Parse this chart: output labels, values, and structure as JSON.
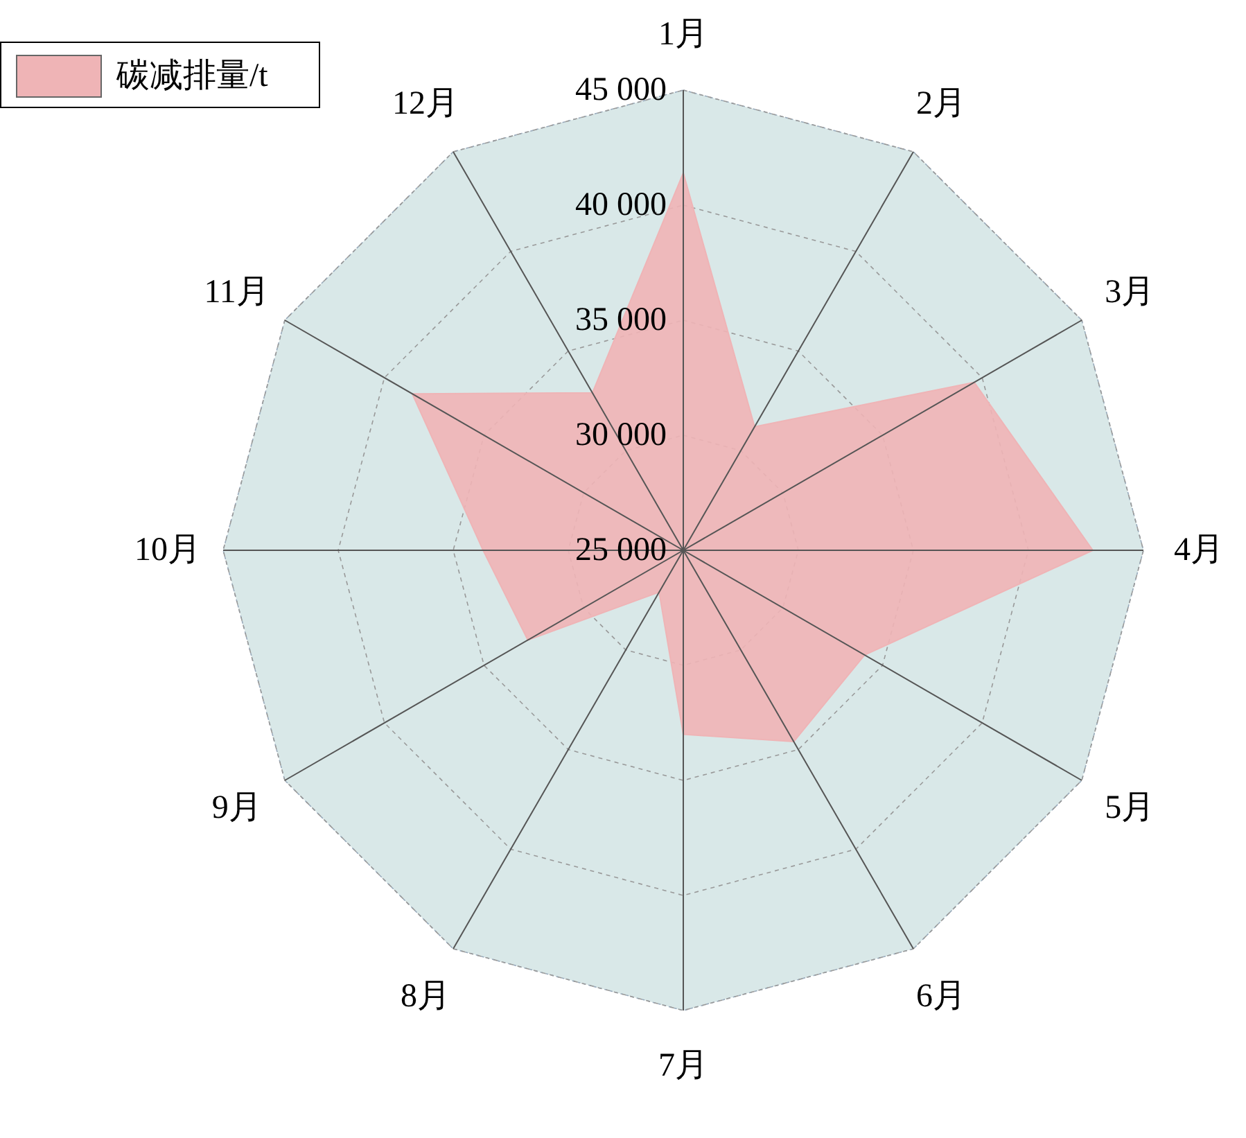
{
  "chart_data": {
    "type": "radar",
    "categories": [
      "1月",
      "2月",
      "3月",
      "4月",
      "5月",
      "6月",
      "7月",
      "8月",
      "9月",
      "10月",
      "11月",
      "12月"
    ],
    "series": [
      {
        "name": "碳减排量/t",
        "color": "#efb4b6",
        "values": [
          41400,
          31200,
          39600,
          42800,
          34100,
          34600,
          33000,
          27100,
          32800,
          33700,
          38600,
          32900
        ]
      }
    ],
    "ylim": [
      25000,
      45000
    ],
    "yticks": [
      {
        "value": 25000,
        "label": "25 000"
      },
      {
        "value": 30000,
        "label": "30 000"
      },
      {
        "value": 35000,
        "label": "35 000"
      },
      {
        "value": 40000,
        "label": "40 000"
      },
      {
        "value": 45000,
        "label": "45 000"
      }
    ],
    "grid": true,
    "legend": "top left"
  }
}
